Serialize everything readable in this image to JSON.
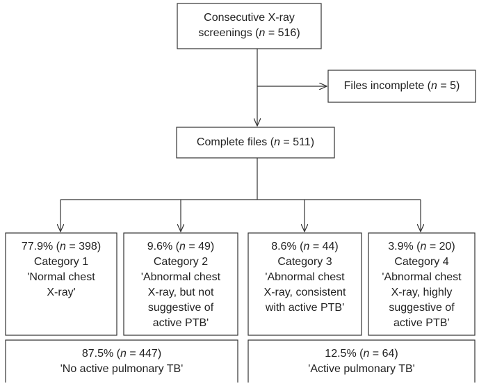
{
  "nodes": [
    {
      "lines": [
        [
          "Consecutive X-ray"
        ],
        [
          "screenings (",
          "n",
          " = 516)"
        ]
      ]
    },
    {
      "lines": [
        [
          "Files incomplete (",
          "n",
          " = 5)"
        ]
      ]
    },
    {
      "lines": [
        [
          "Complete files (",
          "n",
          " = 511)"
        ]
      ]
    },
    {
      "lines": [
        [
          "77.9% (",
          "n",
          " = 398)"
        ],
        [
          "Category 1"
        ],
        [
          "'Normal chest"
        ],
        [
          "X-ray'"
        ]
      ]
    },
    {
      "lines": [
        [
          "9.6% (",
          "n",
          " = 49)"
        ],
        [
          "Category 2"
        ],
        [
          "'Abnormal chest"
        ],
        [
          "X-ray, but not"
        ],
        [
          "suggestive of"
        ],
        [
          "active PTB'"
        ]
      ]
    },
    {
      "lines": [
        [
          "8.6% (",
          "n",
          " = 44)"
        ],
        [
          "Category 3"
        ],
        [
          "'Abnormal chest"
        ],
        [
          "X-ray, consistent"
        ],
        [
          "with active PTB'"
        ]
      ]
    },
    {
      "lines": [
        [
          "3.9% (",
          "n",
          " = 20)"
        ],
        [
          "Category 4"
        ],
        [
          "'Abnormal chest"
        ],
        [
          "X-ray, highly"
        ],
        [
          "suggestive of"
        ],
        [
          "active PTB’"
        ]
      ]
    },
    {
      "lines": [
        [
          "87.5% (",
          "n",
          " = 447)"
        ],
        [
          "'No active pulmonary TB'"
        ]
      ]
    },
    {
      "lines": [
        [
          "12.5% (",
          "n",
          " = 64)"
        ],
        [
          "'Active pulmonary TB'"
        ]
      ]
    }
  ]
}
